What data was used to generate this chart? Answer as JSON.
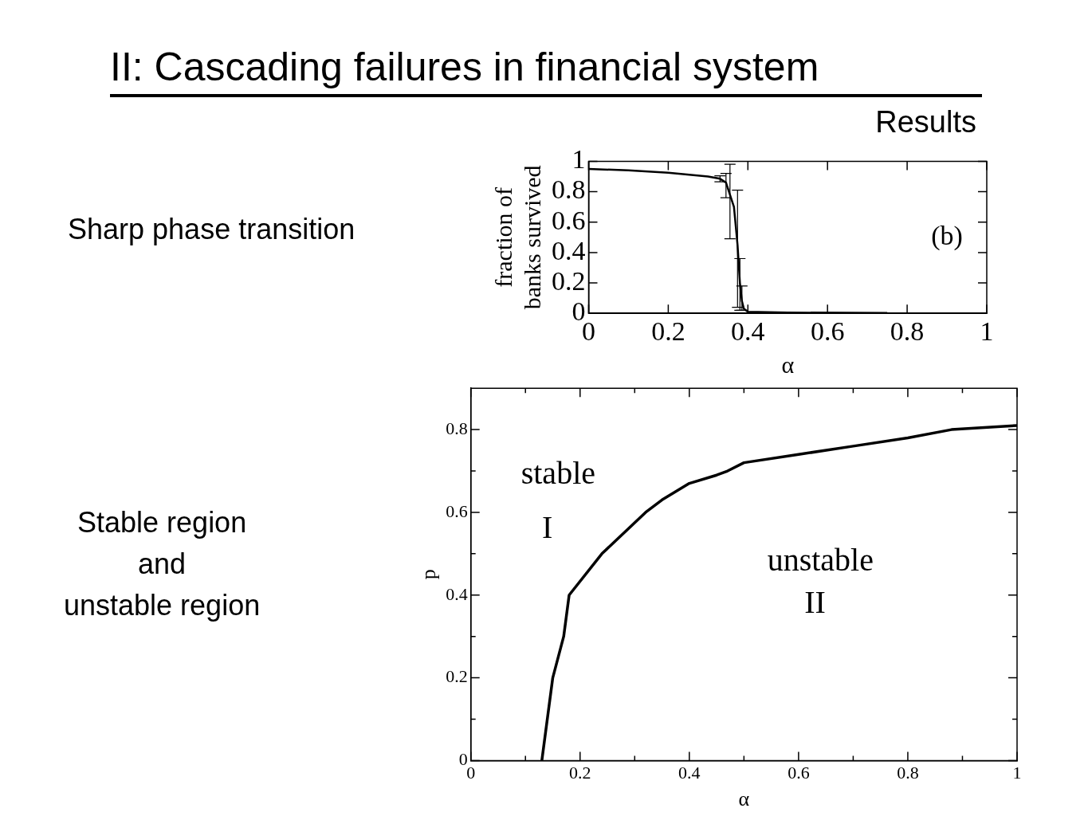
{
  "chart_data": [
    {
      "type": "line",
      "title": "II: Cascading failures in financial system",
      "subtitle": "Results",
      "xlabel": "α",
      "ylabel": "fraction of banks survived",
      "grid": false,
      "marker": "none",
      "legend": false,
      "xlim": [
        0,
        1
      ],
      "ylim": [
        0,
        1
      ],
      "xticks": [
        0,
        0.2,
        0.4,
        0.6,
        0.8,
        1
      ],
      "yticks": [
        0,
        0.2,
        0.4,
        0.6,
        0.8,
        1
      ],
      "annotations": [
        "Sharp phase transition",
        "(b)"
      ],
      "series": [
        {
          "color": "#000000",
          "x": [
            0,
            0.1,
            0.2,
            0.3,
            0.33,
            0.345,
            0.355,
            0.365,
            0.374,
            0.38,
            0.385,
            0.39,
            0.4,
            0.5,
            0.75
          ],
          "values": [
            0.95,
            0.94,
            0.925,
            0.9,
            0.885,
            0.86,
            0.78,
            0.7,
            0.45,
            0.2,
            0.08,
            0.03,
            0.01,
            0.005,
            0.002
          ],
          "errors": [
            null,
            null,
            null,
            null,
            0.02,
            [
              0.76,
              0.92
            ],
            [
              0.49,
              0.98
            ],
            null,
            [
              0.04,
              0.81
            ],
            [
              0.02,
              0.36
            ],
            [
              0.02,
              0.18
            ],
            null,
            null,
            null,
            null
          ]
        }
      ]
    },
    {
      "type": "line",
      "xlabel": "α",
      "ylabel": "p",
      "grid": false,
      "marker": "none",
      "legend": false,
      "xlim": [
        0,
        1
      ],
      "ylim": [
        0,
        0.9
      ],
      "xticks": [
        0,
        {
          "value": 0.1,
          "label": null
        },
        0.2,
        {
          "value": 0.3,
          "label": null
        },
        0.4,
        {
          "value": 0.5,
          "label": null
        },
        0.6,
        {
          "value": 0.7,
          "label": null
        },
        0.8,
        {
          "value": 0.9,
          "label": null
        },
        1
      ],
      "yticks": [
        0,
        {
          "value": 0.1,
          "label": null
        },
        0.2,
        {
          "value": 0.3,
          "label": null
        },
        0.4,
        {
          "value": 0.5,
          "label": null
        },
        0.6,
        {
          "value": 0.7,
          "label": null
        },
        0.8
      ],
      "annotations": [
        "Stable region\nand\nunstable region",
        "stable",
        "I",
        "unstable",
        "II"
      ],
      "series": [
        {
          "color": "#000000",
          "x": [
            0.13,
            0.15,
            0.17,
            0.18,
            0.24,
            0.32,
            0.35,
            0.4,
            0.45,
            0.47,
            0.5,
            0.6,
            0.7,
            0.8,
            0.88,
            1.0
          ],
          "values": [
            0,
            0.2,
            0.3,
            0.4,
            0.5,
            0.6,
            0.63,
            0.67,
            0.69,
            0.7,
            0.72,
            0.74,
            0.76,
            0.78,
            0.8,
            0.81
          ]
        }
      ]
    }
  ]
}
